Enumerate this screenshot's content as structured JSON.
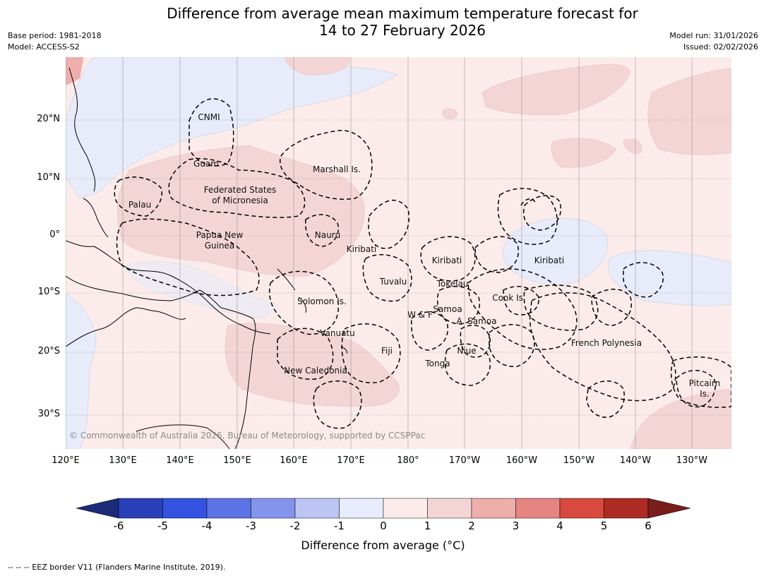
{
  "header": {
    "title_line1": "Difference from average mean maximum temperature forecast for",
    "title_line2": "14 to 27 February 2026",
    "base_period": "Base period: 1981-2018",
    "model": "Model: ACCESS-S2",
    "model_run": "Model run: 31/01/2026",
    "issued": "Issued: 02/02/2026"
  },
  "map": {
    "lon_ticks": [
      "120°E",
      "130°E",
      "140°E",
      "150°E",
      "160°E",
      "170°E",
      "180°",
      "170°W",
      "160°W",
      "150°W",
      "140°W",
      "130°W"
    ],
    "lat_ticks": [
      "20°N",
      "10°N",
      "0°",
      "10°S",
      "20°S",
      "30°S"
    ],
    "region_labels": [
      {
        "name": "CNMI"
      },
      {
        "name": "Guam"
      },
      {
        "name": "Marshall Is."
      },
      {
        "name": "Federated States"
      },
      {
        "name": "of Micronesia"
      },
      {
        "name": "Palau"
      },
      {
        "name": "Papua New"
      },
      {
        "name": "Guinea"
      },
      {
        "name": "Nauru"
      },
      {
        "name": "Kiribati"
      },
      {
        "name": "Kiribati"
      },
      {
        "name": "Kiribati"
      },
      {
        "name": "Tuvalu"
      },
      {
        "name": "Tokelau"
      },
      {
        "name": "Solomon Is."
      },
      {
        "name": "Samoa"
      },
      {
        "name": "W & F"
      },
      {
        "name": "A. Samoa"
      },
      {
        "name": "Cook Is."
      },
      {
        "name": "Vanuatu"
      },
      {
        "name": "Fiji"
      },
      {
        "name": "Niue"
      },
      {
        "name": "Tonga"
      },
      {
        "name": "New Caledonia"
      },
      {
        "name": "French Polynesia"
      },
      {
        "name": "Pitcairn"
      },
      {
        "name": "Is."
      }
    ],
    "copyright": "© Commonwealth of Australia 2026, Bureau of Meteorology, supported by CCSPPac",
    "colors": {
      "ocean_neutral": "#fbeceb",
      "light_blue": "#e8ebf9",
      "light_red": "#f4d5d5",
      "grid": "#888888"
    }
  },
  "colorbar": {
    "ticks": [
      "-6",
      "-5",
      "-4",
      "-3",
      "-2",
      "-1",
      "0",
      "1",
      "2",
      "3",
      "4",
      "5",
      "6"
    ],
    "colors": [
      "#1c2a7a",
      "#2a40b8",
      "#3352e0",
      "#5b73e4",
      "#8494ea",
      "#bcc5f4",
      "#e8ebfb",
      "#fbeceb",
      "#f4d5d5",
      "#eeaeac",
      "#e58480",
      "#d84a3f",
      "#ac2b23",
      "#7a1e1b"
    ],
    "label": "Difference from average (°C)"
  },
  "footer": {
    "eez_note": "--  --  -- EEZ border V11 (Flanders Marine Institute, 2019)."
  }
}
